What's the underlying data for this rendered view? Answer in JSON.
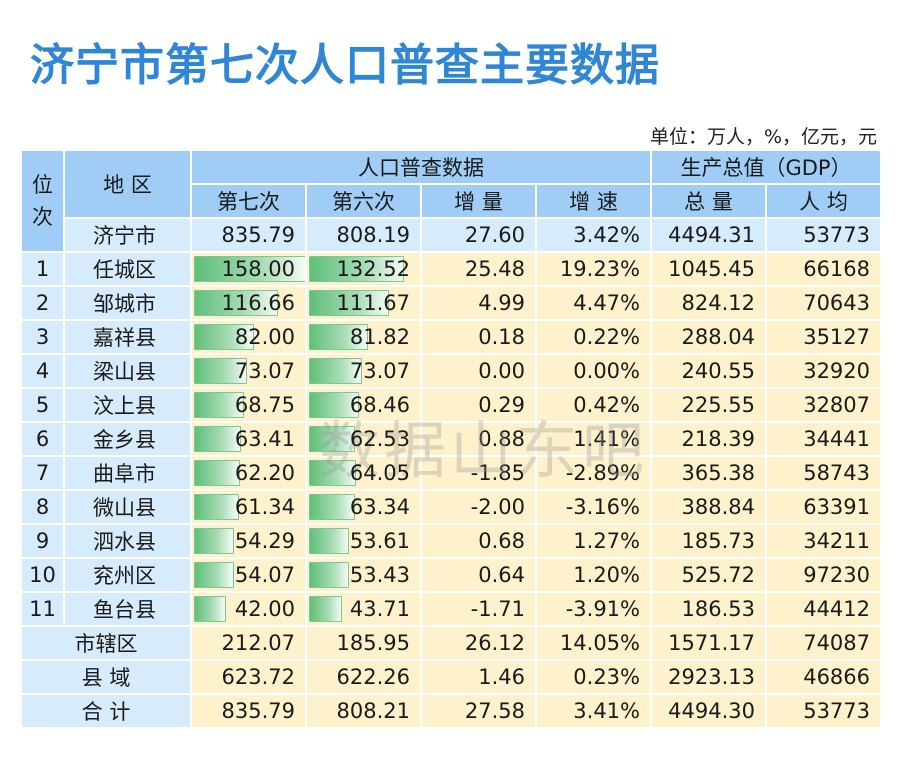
{
  "title": "济宁市第七次人口普查主要数据",
  "unit": "单位：万人，%，亿元，元",
  "headers": {
    "rank": "位次",
    "region": "地 区",
    "census_group": "人口普查数据",
    "gdp_group": "生产总值（GDP）",
    "seventh": "第七次",
    "sixth": "第六次",
    "increase": "增 量",
    "growth": "增 速",
    "gdp_total": "总 量",
    "gdp_per_capita": "人 均"
  },
  "city_row": {
    "name": "济宁市",
    "seventh": "835.79",
    "sixth": "808.19",
    "increase": "27.60",
    "growth": "3.42%",
    "gdp_total": "4494.31",
    "gdp_per_capita": "53773"
  },
  "rows": [
    {
      "rank": "1",
      "name": "任城区",
      "seventh": "158.00",
      "sixth": "132.52",
      "increase": "25.48",
      "growth": "19.23%",
      "gdp_total": "1045.45",
      "gdp_per_capita": "66168"
    },
    {
      "rank": "2",
      "name": "邹城市",
      "seventh": "116.66",
      "sixth": "111.67",
      "increase": "4.99",
      "growth": "4.47%",
      "gdp_total": "824.12",
      "gdp_per_capita": "70643"
    },
    {
      "rank": "3",
      "name": "嘉祥县",
      "seventh": "82.00",
      "sixth": "81.82",
      "increase": "0.18",
      "growth": "0.22%",
      "gdp_total": "288.04",
      "gdp_per_capita": "35127"
    },
    {
      "rank": "4",
      "name": "梁山县",
      "seventh": "73.07",
      "sixth": "73.07",
      "increase": "0.00",
      "growth": "0.00%",
      "gdp_total": "240.55",
      "gdp_per_capita": "32920"
    },
    {
      "rank": "5",
      "name": "汶上县",
      "seventh": "68.75",
      "sixth": "68.46",
      "increase": "0.29",
      "growth": "0.42%",
      "gdp_total": "225.55",
      "gdp_per_capita": "32807"
    },
    {
      "rank": "6",
      "name": "金乡县",
      "seventh": "63.41",
      "sixth": "62.53",
      "increase": "0.88",
      "growth": "1.41%",
      "gdp_total": "218.39",
      "gdp_per_capita": "34441"
    },
    {
      "rank": "7",
      "name": "曲阜市",
      "seventh": "62.20",
      "sixth": "64.05",
      "increase": "-1.85",
      "growth": "-2.89%",
      "gdp_total": "365.38",
      "gdp_per_capita": "58743"
    },
    {
      "rank": "8",
      "name": "微山县",
      "seventh": "61.34",
      "sixth": "63.34",
      "increase": "-2.00",
      "growth": "-3.16%",
      "gdp_total": "388.84",
      "gdp_per_capita": "63391"
    },
    {
      "rank": "9",
      "name": "泗水县",
      "seventh": "54.29",
      "sixth": "53.61",
      "increase": "0.68",
      "growth": "1.27%",
      "gdp_total": "185.73",
      "gdp_per_capita": "34211"
    },
    {
      "rank": "10",
      "name": "兖州区",
      "seventh": "54.07",
      "sixth": "53.43",
      "increase": "0.64",
      "growth": "1.20%",
      "gdp_total": "525.72",
      "gdp_per_capita": "97230"
    },
    {
      "rank": "11",
      "name": "鱼台县",
      "seventh": "42.00",
      "sixth": "43.71",
      "increase": "-1.71",
      "growth": "-3.91%",
      "gdp_total": "186.53",
      "gdp_per_capita": "44412"
    }
  ],
  "summary_rows": [
    {
      "name": "市辖区",
      "seventh": "212.07",
      "sixth": "185.95",
      "increase": "26.12",
      "growth": "14.05%",
      "gdp_total": "1571.17",
      "gdp_per_capita": "74087"
    },
    {
      "name": "县 域",
      "seventh": "623.72",
      "sixth": "622.26",
      "increase": "1.46",
      "growth": "0.23%",
      "gdp_total": "2923.13",
      "gdp_per_capita": "46866"
    },
    {
      "name": "合 计",
      "seventh": "835.79",
      "sixth": "808.21",
      "increase": "27.58",
      "growth": "3.41%",
      "gdp_total": "4494.30",
      "gdp_per_capita": "53773"
    }
  ],
  "bar_scale_max": 158.0,
  "watermark": "数据山东吧",
  "colors": {
    "title": "#2e86d4",
    "header": "#9fcdf6",
    "light_blue": "#d6ebfb",
    "light_yellow": "#fdf2cc",
    "bar": "#5fbf7a"
  }
}
